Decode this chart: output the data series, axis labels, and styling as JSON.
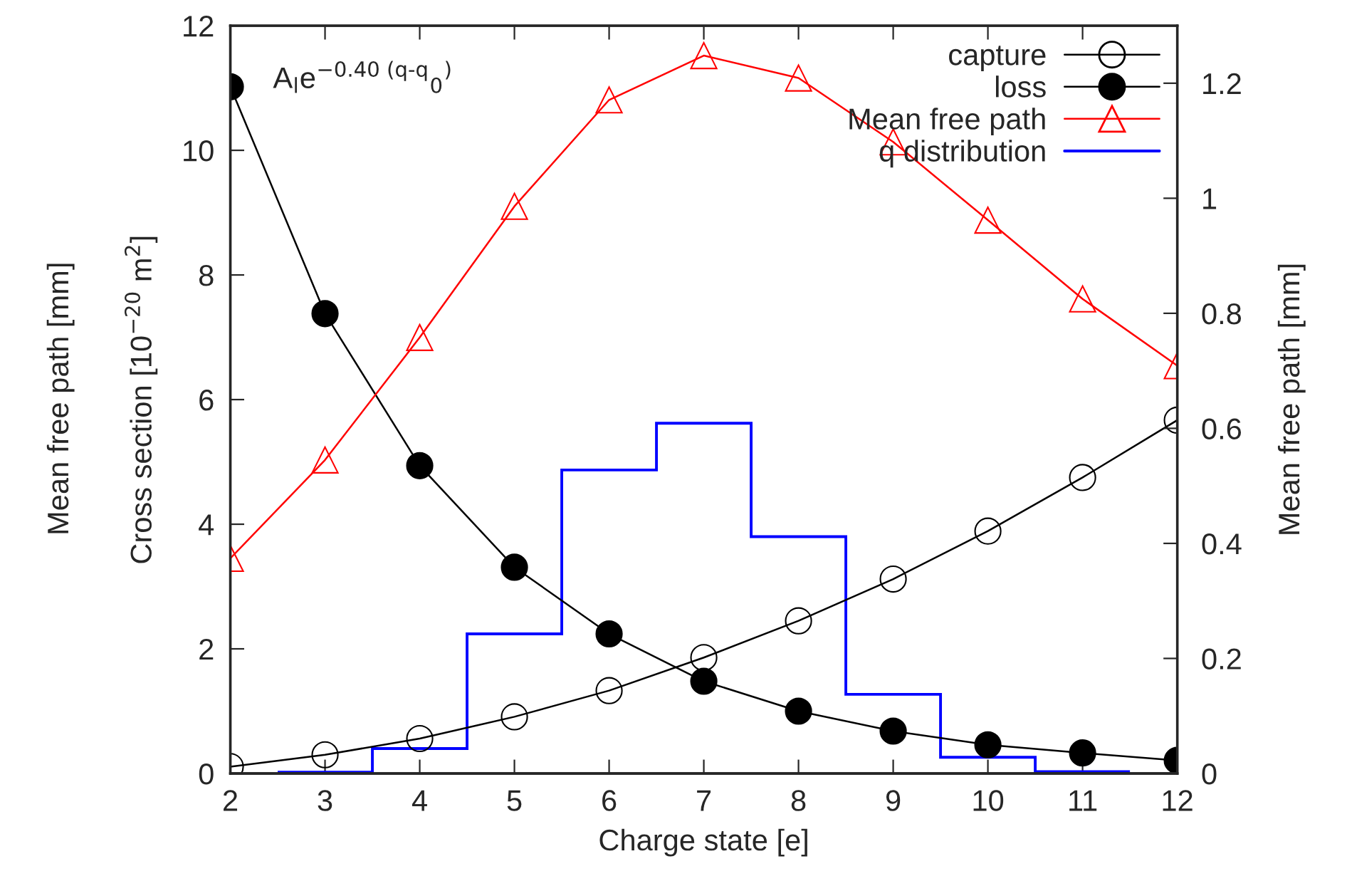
{
  "chart_data": {
    "type": "line",
    "xlabel": "Charge state [e]",
    "ylabel": "Cross section [10$^{−20}$ m$^{2}$]",
    "y2label": "Mean free path [mm]",
    "annotations": [
      "A$_{l}$e$^{−0.40 (q-q}$$_{0}$$^{)}$",
      "Mean free path [mm]"
    ],
    "x": [
      2,
      3,
      4,
      5,
      6,
      7,
      8,
      9,
      10,
      11,
      12
    ],
    "series": [
      {
        "name": "capture",
        "color": "#000000",
        "marker": "circle",
        "values": [
          0.11,
          0.3,
          0.56,
          0.91,
          1.33,
          1.86,
          2.45,
          3.12,
          3.89,
          4.75,
          5.67
        ]
      },
      {
        "name": "loss",
        "color": "#000000",
        "marker": "circle",
        "values": [
          11.02,
          7.38,
          4.94,
          3.31,
          2.24,
          1.48,
          1.0,
          0.68,
          0.46,
          0.33,
          0.21
        ]
      },
      {
        "name": "Mean free path",
        "color": "#ff0000",
        "marker": "triangle",
        "axis": "y2",
        "values": [
          0.374,
          0.545,
          0.758,
          0.986,
          1.171,
          1.248,
          1.209,
          1.098,
          0.962,
          0.825,
          0.709
        ]
      },
      {
        "name": "q distribution",
        "color": "#0000ff",
        "type": "histogram",
        "bins": [
          2.5,
          3.5,
          4.5,
          5.5,
          6.5,
          7.5,
          8.5,
          9.5,
          10.5,
          11.5
        ],
        "values": [
          0.02,
          0.4,
          2.24,
          4.87,
          5.62,
          3.8,
          1.27,
          0.26,
          0.03
        ]
      }
    ],
    "xlim": [
      2,
      12
    ],
    "xticks": [
      2,
      3,
      4,
      5,
      6,
      7,
      8,
      9,
      10,
      11,
      12
    ],
    "ylim": [
      0,
      12
    ],
    "yticks": [
      0,
      2,
      4,
      6,
      8,
      10,
      12
    ],
    "y2lim": [
      0,
      1.3
    ],
    "y2ticks": [
      0,
      0.2,
      0.4,
      0.6,
      0.8,
      1,
      1.2
    ],
    "grid": false,
    "legend": "top right"
  }
}
